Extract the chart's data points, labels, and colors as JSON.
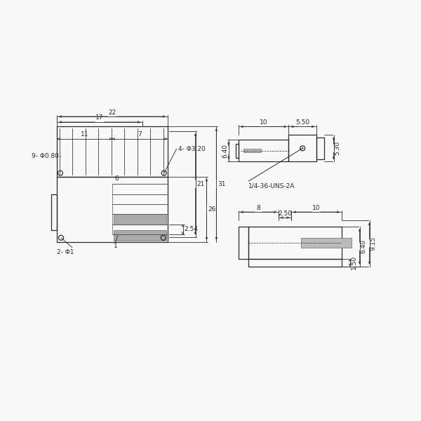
{
  "bg_color": "#f8f8f8",
  "line_color": "#2a2a2a",
  "dim_color": "#2a2a2a",
  "text_color": "#2a2a2a",
  "fill_color": "#cccccc",
  "figsize": [
    6.0,
    6.0
  ],
  "dpi": 100,
  "annotations": {
    "dim_22": "22",
    "dim_17": "17",
    "dim_11": "11",
    "dim_7": "7",
    "dim_9phi080": "9- Φ0.80",
    "dim_4phi320": "4- Φ3.20",
    "dim_6": "6",
    "dim_254": "2.54",
    "dim_21": "21",
    "dim_26": "26",
    "dim_31": "31",
    "dim_2phi1": "2- Φ1",
    "dim_1": "1",
    "dim_10_top": "10",
    "dim_550": "5.50",
    "dim_640_top": "6.40",
    "dim_530": "5.30",
    "dim_1436": "1/4-36-UNS-2A",
    "dim_8": "8",
    "dim_250": "2.50",
    "dim_10_bot": "10",
    "dim_150": "1.50",
    "dim_640_bot": "6.40",
    "dim_915": "9.15"
  }
}
